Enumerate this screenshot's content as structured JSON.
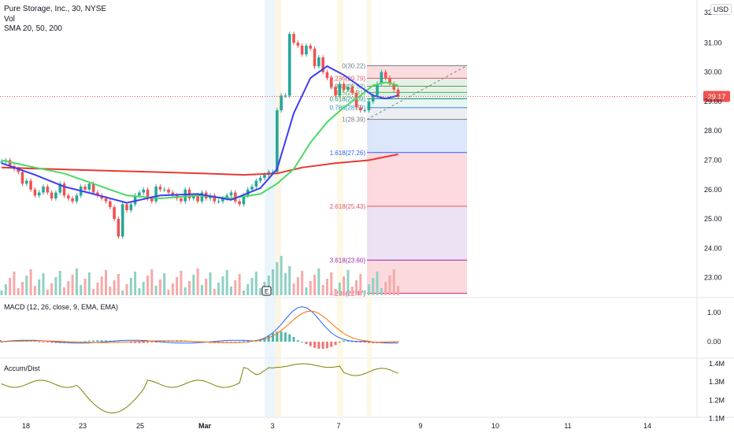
{
  "header": {
    "title": "Pure Storage, Inc., 30, NYSE",
    "vol_label": "Vol",
    "sma_label": "SMA 20, 50, 200",
    "currency": "USD"
  },
  "panes": {
    "macd_label": "MACD (12, 26, close, 9, EMA, EMA)",
    "ad_label": "Accum/Dist"
  },
  "chart_data": {
    "type": "candlestick",
    "price_axis": {
      "ticks": [
        "31.00",
        "30.00",
        "29.00",
        "28.00",
        "27.00",
        "26.00",
        "25.00",
        "24.00",
        "23.00"
      ],
      "top_partial": "32.0",
      "ylim": [
        22.3,
        32.2
      ]
    },
    "x_ticks": [
      "18",
      "23",
      "25",
      "Mar",
      "3",
      "7",
      "9",
      "10",
      "11",
      "14"
    ],
    "last_price": "29.17",
    "fib_levels": [
      {
        "label": "0(30.22)",
        "value": 30.22
      },
      {
        "label": "0.236(29.79)",
        "value": 29.79
      },
      {
        "label": "0.382(29.52)",
        "value": 29.52
      },
      {
        "label": "0.5(29.31)",
        "value": 29.31
      },
      {
        "label": "0.618(29.09)",
        "value": 29.09
      },
      {
        "label": "0.786(28.79)",
        "value": 28.79
      },
      {
        "label": "1(28.39)",
        "value": 28.39
      },
      {
        "label": "1.618(27.26)",
        "value": 27.26
      },
      {
        "label": "2.618(25.43)",
        "value": 25.43
      },
      {
        "label": "3.618(23.60)",
        "value": 23.6
      },
      {
        "label": "4.236(22.47)",
        "value": 22.47
      }
    ],
    "earnings_marker": "E",
    "macd_axis": {
      "ticks": [
        "1.00",
        "0.00"
      ],
      "ylim": [
        -0.75,
        1.3
      ]
    },
    "ad_axis": {
      "ticks": [
        "1.4M",
        "1.3M",
        "1.2M",
        "1.1M"
      ],
      "ylim": [
        1.07,
        1.42
      ]
    },
    "closes": [
      26.95,
      27.0,
      26.8,
      26.7,
      26.6,
      26.2,
      26.3,
      26.0,
      25.8,
      25.9,
      26.1,
      25.9,
      25.7,
      25.9,
      26.2,
      25.8,
      25.7,
      25.6,
      25.8,
      26.1,
      26.0,
      26.2,
      25.9,
      25.8,
      25.7,
      25.6,
      25.4,
      25.0,
      24.4,
      25.5,
      25.3,
      25.5,
      25.8,
      25.9,
      26.0,
      25.7,
      25.6,
      26.1,
      26.0,
      26.0,
      25.9,
      25.8,
      25.7,
      25.6,
      26.0,
      25.7,
      25.8,
      25.6,
      25.9,
      25.7,
      25.8,
      25.6,
      25.6,
      25.7,
      25.8,
      25.9,
      25.6,
      25.5,
      25.8,
      26.0,
      26.1,
      26.3,
      26.4,
      26.5,
      26.6,
      26.6,
      28.7,
      29.2,
      29.2,
      31.3,
      31.0,
      30.9,
      30.6,
      30.9,
      30.8,
      30.2,
      30.5,
      30.0,
      29.8,
      29.5,
      29.2,
      29.6,
      29.4,
      29.5,
      29.3,
      28.8,
      28.7,
      28.7,
      29.0,
      29.2,
      29.6,
      30.0,
      29.8,
      29.6,
      29.4,
      29.17
    ],
    "sma20": [
      {
        "x": 0,
        "y": 26.9
      },
      {
        "x": 8,
        "y": 26.5
      },
      {
        "x": 15,
        "y": 26.1
      },
      {
        "x": 22,
        "y": 25.85
      },
      {
        "x": 30,
        "y": 25.55
      },
      {
        "x": 38,
        "y": 25.8
      },
      {
        "x": 47,
        "y": 25.85
      },
      {
        "x": 55,
        "y": 25.65
      },
      {
        "x": 62,
        "y": 26.05
      },
      {
        "x": 66,
        "y": 26.7
      },
      {
        "x": 70,
        "y": 28.6
      },
      {
        "x": 74,
        "y": 29.8
      },
      {
        "x": 78,
        "y": 30.2
      },
      {
        "x": 82,
        "y": 29.9
      },
      {
        "x": 86,
        "y": 29.5
      },
      {
        "x": 89,
        "y": 29.2
      },
      {
        "x": 92,
        "y": 29.1
      },
      {
        "x": 95,
        "y": 29.2
      }
    ],
    "sma50": [
      {
        "x": 0,
        "y": 27.0
      },
      {
        "x": 8,
        "y": 26.75
      },
      {
        "x": 15,
        "y": 26.55
      },
      {
        "x": 22,
        "y": 26.2
      },
      {
        "x": 30,
        "y": 25.8
      },
      {
        "x": 38,
        "y": 25.7
      },
      {
        "x": 47,
        "y": 25.8
      },
      {
        "x": 55,
        "y": 25.7
      },
      {
        "x": 62,
        "y": 25.85
      },
      {
        "x": 66,
        "y": 26.2
      },
      {
        "x": 70,
        "y": 26.7
      },
      {
        "x": 74,
        "y": 27.6
      },
      {
        "x": 78,
        "y": 28.3
      },
      {
        "x": 82,
        "y": 28.8
      },
      {
        "x": 86,
        "y": 29.2
      },
      {
        "x": 89,
        "y": 29.55
      },
      {
        "x": 92,
        "y": 29.65
      },
      {
        "x": 95,
        "y": 29.55
      }
    ],
    "sma200": [
      {
        "x": 0,
        "y": 26.75
      },
      {
        "x": 12,
        "y": 26.7
      },
      {
        "x": 24,
        "y": 26.65
      },
      {
        "x": 36,
        "y": 26.6
      },
      {
        "x": 48,
        "y": 26.55
      },
      {
        "x": 58,
        "y": 26.5
      },
      {
        "x": 66,
        "y": 26.55
      },
      {
        "x": 72,
        "y": 26.75
      },
      {
        "x": 80,
        "y": 26.9
      },
      {
        "x": 88,
        "y": 27.0
      },
      {
        "x": 95,
        "y": 27.2
      }
    ]
  }
}
